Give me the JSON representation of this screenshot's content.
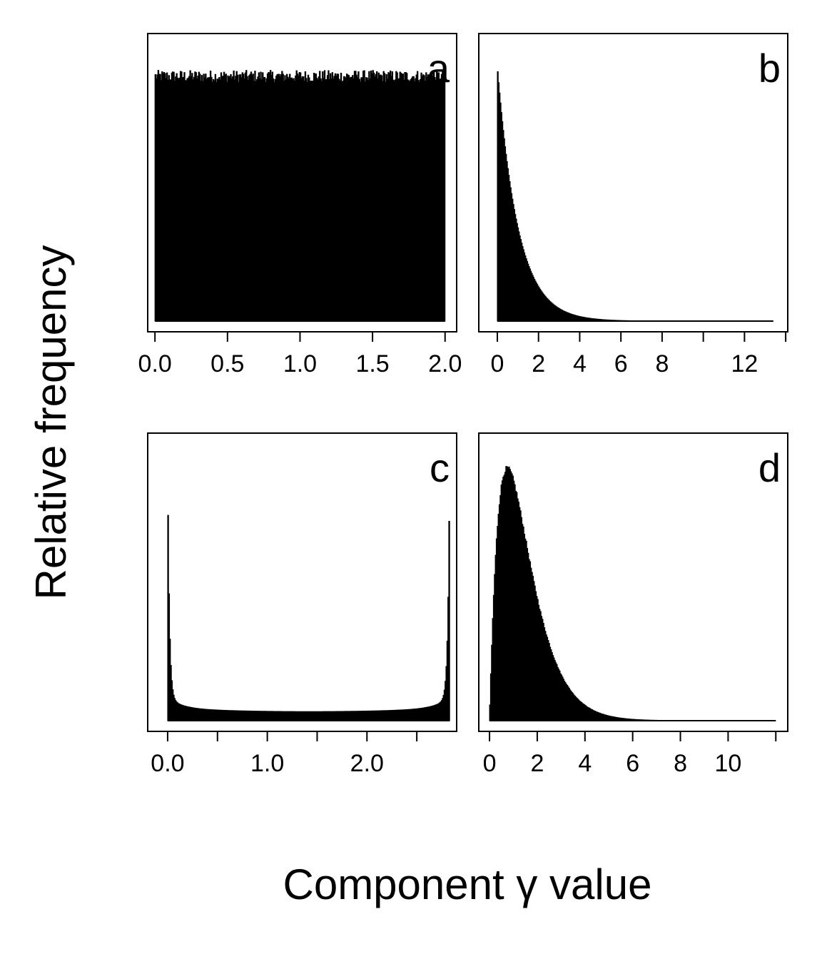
{
  "figure": {
    "ylabel": "Relative frequency",
    "xlabel_parts": [
      "Component ",
      "γ",
      " value"
    ]
  },
  "chart_data": [
    {
      "type": "histogram",
      "panel": "a",
      "title": "a",
      "xlim": [
        -0.05,
        2.08
      ],
      "ylim": [
        0,
        1.05
      ],
      "xticks": [
        0.0,
        0.5,
        1.0,
        1.5,
        2.0
      ],
      "xtick_labels": [
        "0.0",
        "0.5",
        "1.0",
        "1.5",
        "2.0"
      ],
      "minor_xticks": [],
      "shape": "uniform",
      "params": {
        "lo": 0.0,
        "hi": 2.0,
        "level": 0.94,
        "noise": 0.025
      }
    },
    {
      "type": "histogram",
      "panel": "b",
      "title": "b",
      "xlim": [
        -0.9,
        14.1
      ],
      "ylim": [
        0,
        1.05
      ],
      "xticks": [
        0,
        2,
        4,
        6,
        8,
        12
      ],
      "xtick_labels": [
        "0",
        "2",
        "4",
        "6",
        "8",
        "12"
      ],
      "minor_xticks": [
        10,
        14
      ],
      "shape": "exponential",
      "params": {
        "lo": 0.0,
        "hi": 13.4,
        "rate": 1.0,
        "peak": 0.98
      }
    },
    {
      "type": "histogram",
      "panel": "c",
      "title": "c",
      "xlim": [
        -0.2,
        2.9
      ],
      "ylim": [
        0,
        1.05
      ],
      "xticks": [
        0.0,
        1.0,
        2.0
      ],
      "xtick_labels": [
        "0.0",
        "1.0",
        "2.0"
      ],
      "minor_xticks": [
        0.5,
        1.5,
        2.5
      ],
      "shape": "u-shaped",
      "params": {
        "lo": 0.0,
        "hi": 2.83,
        "peak_left": 0.97,
        "peak_right": 0.94,
        "floor": 0.045
      }
    },
    {
      "type": "histogram",
      "panel": "d",
      "title": "d",
      "xlim": [
        -0.45,
        12.5
      ],
      "ylim": [
        0,
        1.05
      ],
      "xticks": [
        0,
        2,
        4,
        6,
        8,
        10
      ],
      "xtick_labels": [
        "0",
        "2",
        "4",
        "6",
        "8",
        "10"
      ],
      "minor_xticks": [
        12
      ],
      "shape": "gamma",
      "params": {
        "lo": 0.0,
        "hi": 12.0,
        "mode": 0.75,
        "peak": 0.97
      }
    }
  ]
}
